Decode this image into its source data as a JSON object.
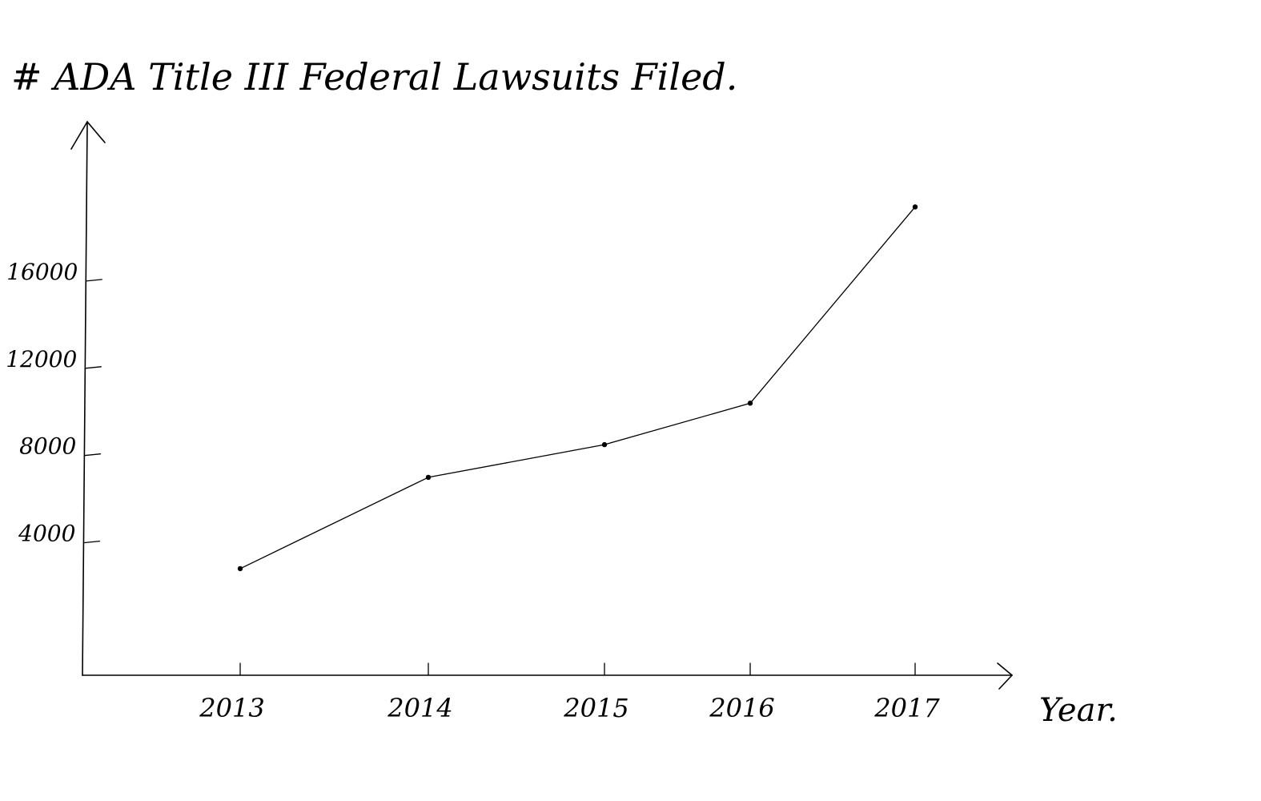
{
  "chart_data": {
    "type": "line",
    "title": "# ADA Title III Federal Lawsuits Filed.",
    "xlabel": "Year.",
    "ylabel": "",
    "categories": [
      "2013",
      "2014",
      "2015",
      "2016",
      "2017"
    ],
    "values": [
      2814,
      7000,
      8500,
      10400,
      19400
    ],
    "y_ticks": [
      {
        "value": 4000,
        "label": "4000"
      },
      {
        "value": 8000,
        "label": "8000"
      },
      {
        "value": 12000,
        "label": "12000"
      },
      {
        "value": 16000,
        "label": "16000"
      }
    ],
    "ylim": [
      -2000,
      27000
    ],
    "grid": false,
    "legend": "none",
    "colors": {
      "line": "#000000",
      "background": "#ffffff"
    }
  }
}
